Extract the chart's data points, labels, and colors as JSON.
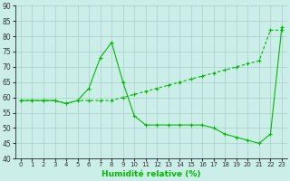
{
  "title": "",
  "xlabel": "Humidité relative (%)",
  "ylabel": "",
  "bg_color": "#cceee8",
  "line_color": "#00bb00",
  "grid_color": "#aacccc",
  "xlim": [
    -0.5,
    23.5
  ],
  "ylim": [
    40,
    90
  ],
  "yticks": [
    40,
    45,
    50,
    55,
    60,
    65,
    70,
    75,
    80,
    85,
    90
  ],
  "xticks": [
    0,
    1,
    2,
    3,
    4,
    5,
    6,
    7,
    8,
    9,
    10,
    11,
    12,
    13,
    14,
    15,
    16,
    17,
    18,
    19,
    20,
    21,
    22,
    23
  ],
  "series1_x": [
    0,
    1,
    2,
    3,
    4,
    5,
    6,
    7,
    8,
    9,
    10,
    11,
    12,
    13,
    14,
    15,
    16,
    17,
    18,
    19,
    20,
    21,
    22,
    23
  ],
  "series1_y": [
    59,
    59,
    59,
    59,
    58,
    59,
    63,
    73,
    78,
    65,
    54,
    51,
    51,
    51,
    51,
    51,
    51,
    50,
    48,
    47,
    46,
    45,
    48,
    83
  ],
  "series2_x": [
    0,
    1,
    2,
    3,
    4,
    5,
    6,
    7,
    8,
    9,
    10,
    11,
    12,
    13,
    14,
    15,
    16,
    17,
    18,
    19,
    20,
    21,
    22,
    23
  ],
  "series2_y": [
    59,
    59,
    59,
    59,
    58,
    59,
    59,
    59,
    59,
    60,
    61,
    62,
    63,
    64,
    65,
    66,
    67,
    68,
    69,
    70,
    71,
    72,
    82,
    82
  ]
}
